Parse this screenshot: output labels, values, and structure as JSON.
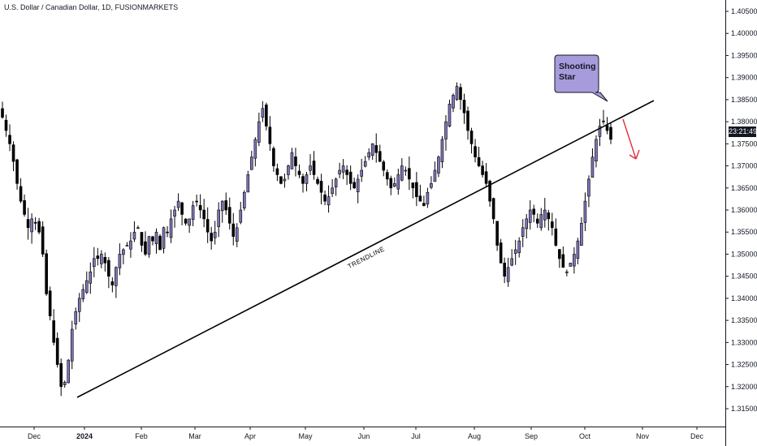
{
  "header": {
    "title": "U.S. Dollar / Canadian Dollar, 1D, FUSIONMARKETS"
  },
  "colors": {
    "candle_body": "#7b74b8",
    "candle_outline": "#000000",
    "trendline": "#000000",
    "arrow": "#e0303c",
    "callout_fill": "#a79bdc",
    "price_badge": "#131722"
  },
  "price_badge": {
    "text": "23:21:49"
  },
  "annotations": {
    "callout": {
      "line1": "Shooting",
      "line2": "Star"
    },
    "trendline_label": "TRENDLINE"
  },
  "chart_data": {
    "type": "candlestick",
    "title": "U.S. Dollar / Canadian Dollar, 1D, FUSIONMARKETS",
    "ylim": [
      1.3115,
      1.4075
    ],
    "price_ticks": [
      "1.40500",
      "1.40000",
      "1.39500",
      "1.39000",
      "1.38500",
      "1.38000",
      "1.37500",
      "1.37000",
      "1.36500",
      "1.36000",
      "1.35500",
      "1.35000",
      "1.34500",
      "1.34000",
      "1.33500",
      "1.33000",
      "1.32500",
      "1.32000",
      "1.31500"
    ],
    "time_ticks": [
      {
        "label": "Dec",
        "bold": false
      },
      {
        "label": "2024",
        "bold": true
      },
      {
        "label": "Feb",
        "bold": false
      },
      {
        "label": "Mar",
        "bold": false
      },
      {
        "label": "Apr",
        "bold": false
      },
      {
        "label": "May",
        "bold": false
      },
      {
        "label": "Jun",
        "bold": false
      },
      {
        "label": "Jul",
        "bold": false
      },
      {
        "label": "Aug",
        "bold": false
      },
      {
        "label": "Sep",
        "bold": false
      },
      {
        "label": "Oct",
        "bold": false
      },
      {
        "label": "Nov",
        "bold": false
      },
      {
        "label": "Dec",
        "bold": false
      }
    ],
    "close_path": [
      1.381,
      1.378,
      1.375,
      1.371,
      1.366,
      1.362,
      1.359,
      1.356,
      1.358,
      1.357,
      1.355,
      1.35,
      1.341,
      1.336,
      1.33,
      1.325,
      1.32,
      1.321,
      1.326,
      1.333,
      1.337,
      1.34,
      1.342,
      1.344,
      1.346,
      1.349,
      1.349,
      1.35,
      1.348,
      1.345,
      1.343,
      1.347,
      1.35,
      1.351,
      1.352,
      1.353,
      1.355,
      1.356,
      1.352,
      1.35,
      1.354,
      1.353,
      1.355,
      1.351,
      1.356,
      1.355,
      1.358,
      1.36,
      1.362,
      1.359,
      1.357,
      1.358,
      1.361,
      1.362,
      1.36,
      1.358,
      1.355,
      1.353,
      1.355,
      1.36,
      1.362,
      1.36,
      1.357,
      1.354,
      1.356,
      1.36,
      1.364,
      1.368,
      1.372,
      1.376,
      1.38,
      1.383,
      1.379,
      1.375,
      1.37,
      1.368,
      1.366,
      1.367,
      1.37,
      1.373,
      1.37,
      1.368,
      1.366,
      1.368,
      1.37,
      1.368,
      1.366,
      1.364,
      1.362,
      1.363,
      1.365,
      1.367,
      1.369,
      1.37,
      1.368,
      1.366,
      1.365,
      1.367,
      1.369,
      1.371,
      1.373,
      1.375,
      1.373,
      1.371,
      1.369,
      1.367,
      1.365,
      1.366,
      1.368,
      1.37,
      1.369,
      1.367,
      1.365,
      1.363,
      1.362,
      1.361,
      1.364,
      1.366,
      1.369,
      1.372,
      1.376,
      1.38,
      1.384,
      1.386,
      1.388,
      1.385,
      1.382,
      1.378,
      1.375,
      1.372,
      1.37,
      1.368,
      1.366,
      1.362,
      1.358,
      1.352,
      1.348,
      1.345,
      1.347,
      1.349,
      1.351,
      1.353,
      1.356,
      1.358,
      1.36,
      1.359,
      1.357,
      1.359,
      1.36,
      1.358,
      1.356,
      1.352,
      1.349,
      1.347,
      1.346,
      1.348,
      1.35,
      1.353,
      1.357,
      1.362,
      1.367,
      1.372,
      1.376,
      1.379,
      1.38,
      1.378,
      1.376
    ],
    "annotations": [
      {
        "type": "trendline",
        "label": "TRENDLINE",
        "from": [
          "Dec 2023",
          1.317
        ],
        "to": [
          "Oct 2024",
          1.3847
        ]
      },
      {
        "type": "callout",
        "text": "Shooting Star"
      },
      {
        "type": "arrow",
        "direction": "down"
      }
    ],
    "legend": "none",
    "grid": false
  }
}
